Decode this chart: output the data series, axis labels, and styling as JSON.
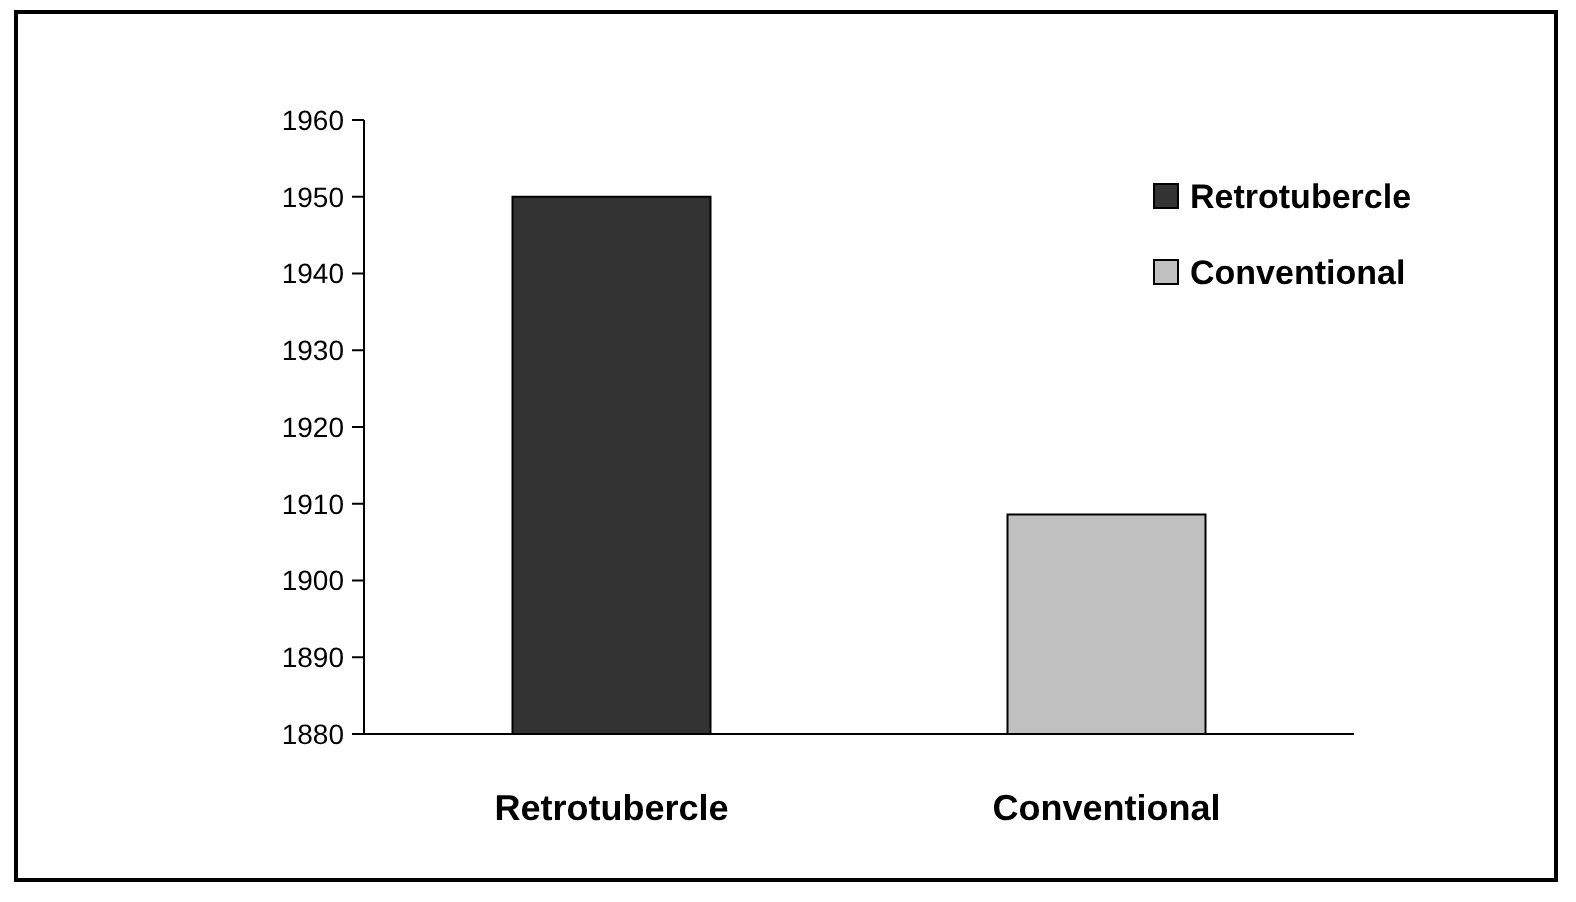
{
  "chart_data": {
    "type": "bar",
    "categories": [
      "Retrotubercle",
      "Conventional"
    ],
    "series": [
      {
        "name": "Retrotubercle",
        "color": "#333333",
        "values": [
          1950,
          null
        ]
      },
      {
        "name": "Conventional",
        "color": "#c0c0c0",
        "values": [
          null,
          1908.6
        ]
      }
    ],
    "ylim": [
      1880,
      1960
    ],
    "yticks": [
      1880,
      1890,
      1900,
      1910,
      1920,
      1930,
      1940,
      1950,
      1960
    ],
    "legend": "top right"
  }
}
